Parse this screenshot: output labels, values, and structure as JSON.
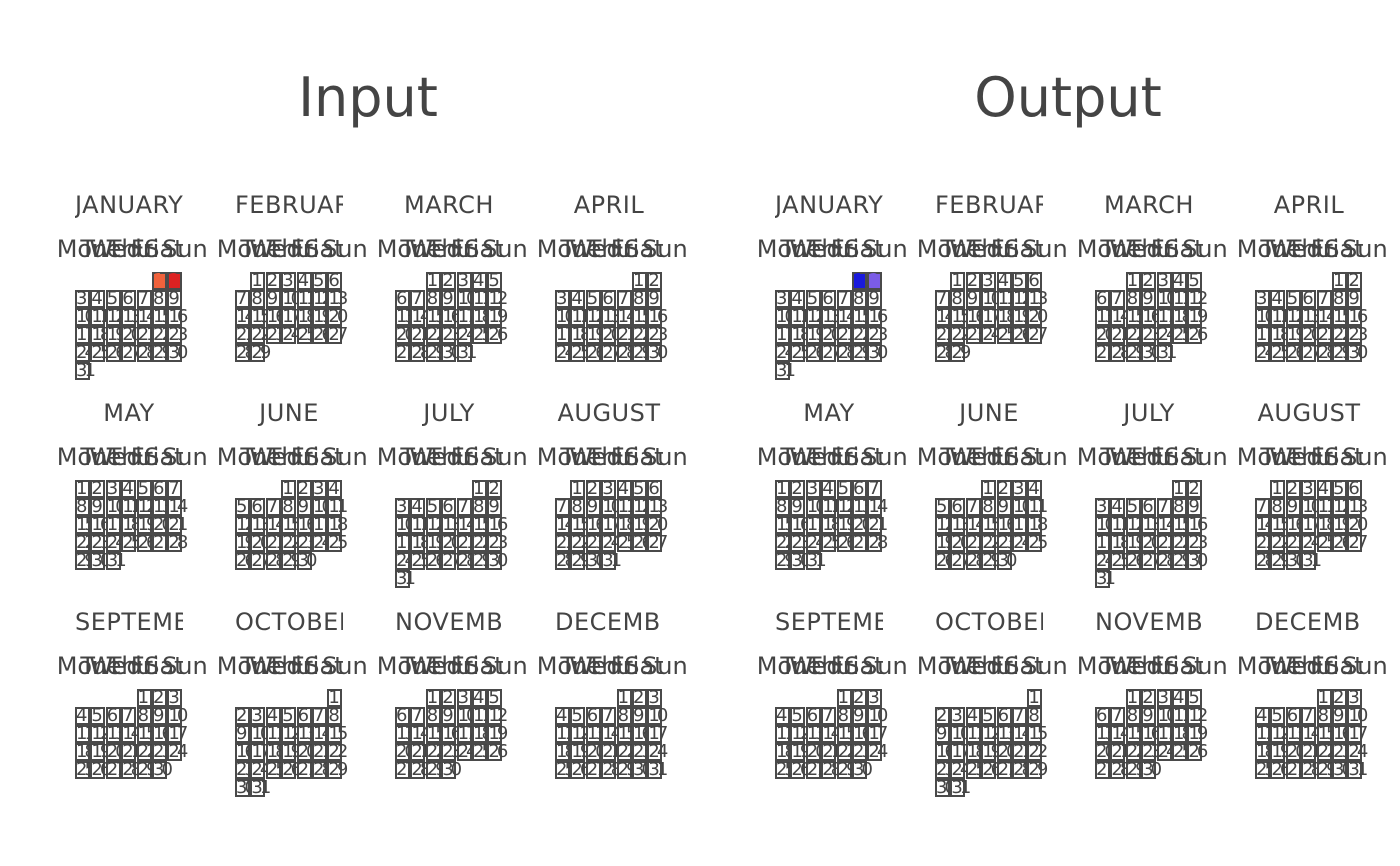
{
  "panels": [
    {
      "id": "input",
      "title": "Input",
      "months": [
        {
          "name": "JANUARY",
          "offset": 5,
          "days": 31,
          "highlights": [
            {
              "day": 1,
              "color": "#f0623c"
            },
            {
              "day": 2,
              "color": "#dd2222"
            }
          ]
        },
        {
          "name": "FEBRUARY",
          "offset": 1,
          "days": 29,
          "highlights": []
        },
        {
          "name": "MARCH",
          "offset": 2,
          "days": 31,
          "highlights": []
        },
        {
          "name": "APRIL",
          "offset": 5,
          "days": 30,
          "highlights": []
        },
        {
          "name": "MAY",
          "offset": 0,
          "days": 31,
          "highlights": []
        },
        {
          "name": "JUNE",
          "offset": 3,
          "days": 30,
          "highlights": []
        },
        {
          "name": "JULY",
          "offset": 5,
          "days": 31,
          "highlights": []
        },
        {
          "name": "AUGUST",
          "offset": 1,
          "days": 31,
          "highlights": []
        },
        {
          "name": "SEPTEMBER",
          "offset": 4,
          "days": 30,
          "highlights": []
        },
        {
          "name": "OCTOBER",
          "offset": 6,
          "days": 31,
          "highlights": []
        },
        {
          "name": "NOVEMBER",
          "offset": 2,
          "days": 30,
          "highlights": []
        },
        {
          "name": "DECEMBER",
          "offset": 4,
          "days": 31,
          "highlights": []
        }
      ]
    },
    {
      "id": "output",
      "title": "Output",
      "months": [
        {
          "name": "JANUARY",
          "offset": 5,
          "days": 31,
          "highlights": [
            {
              "day": 1,
              "color": "#1a1adc"
            },
            {
              "day": 2,
              "color": "#7b5ce6"
            }
          ]
        },
        {
          "name": "FEBRUARY",
          "offset": 1,
          "days": 29,
          "highlights": []
        },
        {
          "name": "MARCH",
          "offset": 2,
          "days": 31,
          "highlights": []
        },
        {
          "name": "APRIL",
          "offset": 5,
          "days": 30,
          "highlights": []
        },
        {
          "name": "MAY",
          "offset": 0,
          "days": 31,
          "highlights": []
        },
        {
          "name": "JUNE",
          "offset": 3,
          "days": 30,
          "highlights": []
        },
        {
          "name": "JULY",
          "offset": 5,
          "days": 31,
          "highlights": []
        },
        {
          "name": "AUGUST",
          "offset": 1,
          "days": 31,
          "highlights": []
        },
        {
          "name": "SEPTEMBER",
          "offset": 4,
          "days": 30,
          "highlights": []
        },
        {
          "name": "OCTOBER",
          "offset": 6,
          "days": 31,
          "highlights": []
        },
        {
          "name": "NOVEMBER",
          "offset": 2,
          "days": 30,
          "highlights": []
        },
        {
          "name": "DECEMBER",
          "offset": 4,
          "days": 31,
          "highlights": []
        }
      ]
    }
  ],
  "weekdays": [
    "Mon",
    "Tue",
    "Wed",
    "Thu",
    "Fri",
    "Sat",
    "Sun"
  ]
}
